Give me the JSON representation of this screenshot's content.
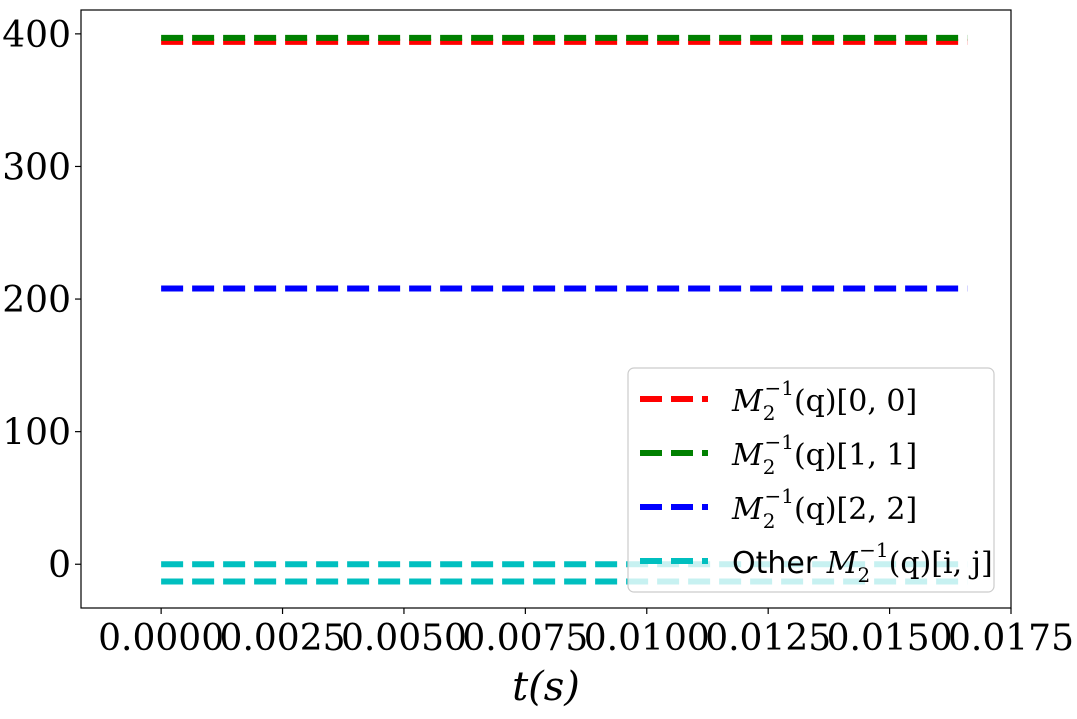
{
  "chart_data": {
    "type": "line",
    "xlabel": "t(s)",
    "ylabel": "",
    "xlim": [
      -0.00165,
      0.0175
    ],
    "ylim": [
      -33,
      418
    ],
    "xticks": [
      0.0,
      0.0025,
      0.005,
      0.0075,
      0.01,
      0.0125,
      0.015,
      0.0175
    ],
    "xtick_labels": [
      "0.0000",
      "0.0025",
      "0.0050",
      "0.0075",
      "0.0100",
      "0.0125",
      "0.0150",
      "0.0175"
    ],
    "yticks": [
      0,
      100,
      200,
      300,
      400
    ],
    "ytick_labels": [
      "0",
      "100",
      "200",
      "300",
      "400"
    ],
    "grid": false,
    "legend_position": "lower-right",
    "series": [
      {
        "name": "M_2^{-1}(q)[0,0]",
        "label_prefix": "",
        "label_symbol": "M",
        "label_sub": "2",
        "label_sup": "−1",
        "label_suffix": "(q)[0, 0]",
        "color": "#ff0000",
        "x": [
          0.0,
          0.0166
        ],
        "y": [
          394,
          394
        ]
      },
      {
        "name": "M_2^{-1}(q)[1,1]",
        "label_prefix": "",
        "label_symbol": "M",
        "label_sub": "2",
        "label_sup": "−1",
        "label_suffix": "(q)[1, 1]",
        "color": "#008000",
        "x": [
          0.0,
          0.0166
        ],
        "y": [
          397,
          397
        ]
      },
      {
        "name": "M_2^{-1}(q)[2,2]",
        "label_prefix": "",
        "label_symbol": "M",
        "label_sub": "2",
        "label_sup": "−1",
        "label_suffix": "(q)[2, 2]",
        "color": "#0000ff",
        "x": [
          0.0,
          0.0166
        ],
        "y": [
          208,
          208
        ]
      },
      {
        "name": "Other M_2^{-1}(q)[i,j]",
        "label_prefix": "Other ",
        "label_symbol": "M",
        "label_sub": "2",
        "label_sup": "−1",
        "label_suffix": "(q)[i, j]",
        "color": "#00bfbf",
        "x": [
          0.0,
          0.0166
        ],
        "y": [
          0,
          0
        ]
      },
      {
        "name": "",
        "color": "#00bfbf",
        "x": [
          0.0,
          0.0166
        ],
        "y": [
          -13,
          -13
        ]
      }
    ]
  }
}
